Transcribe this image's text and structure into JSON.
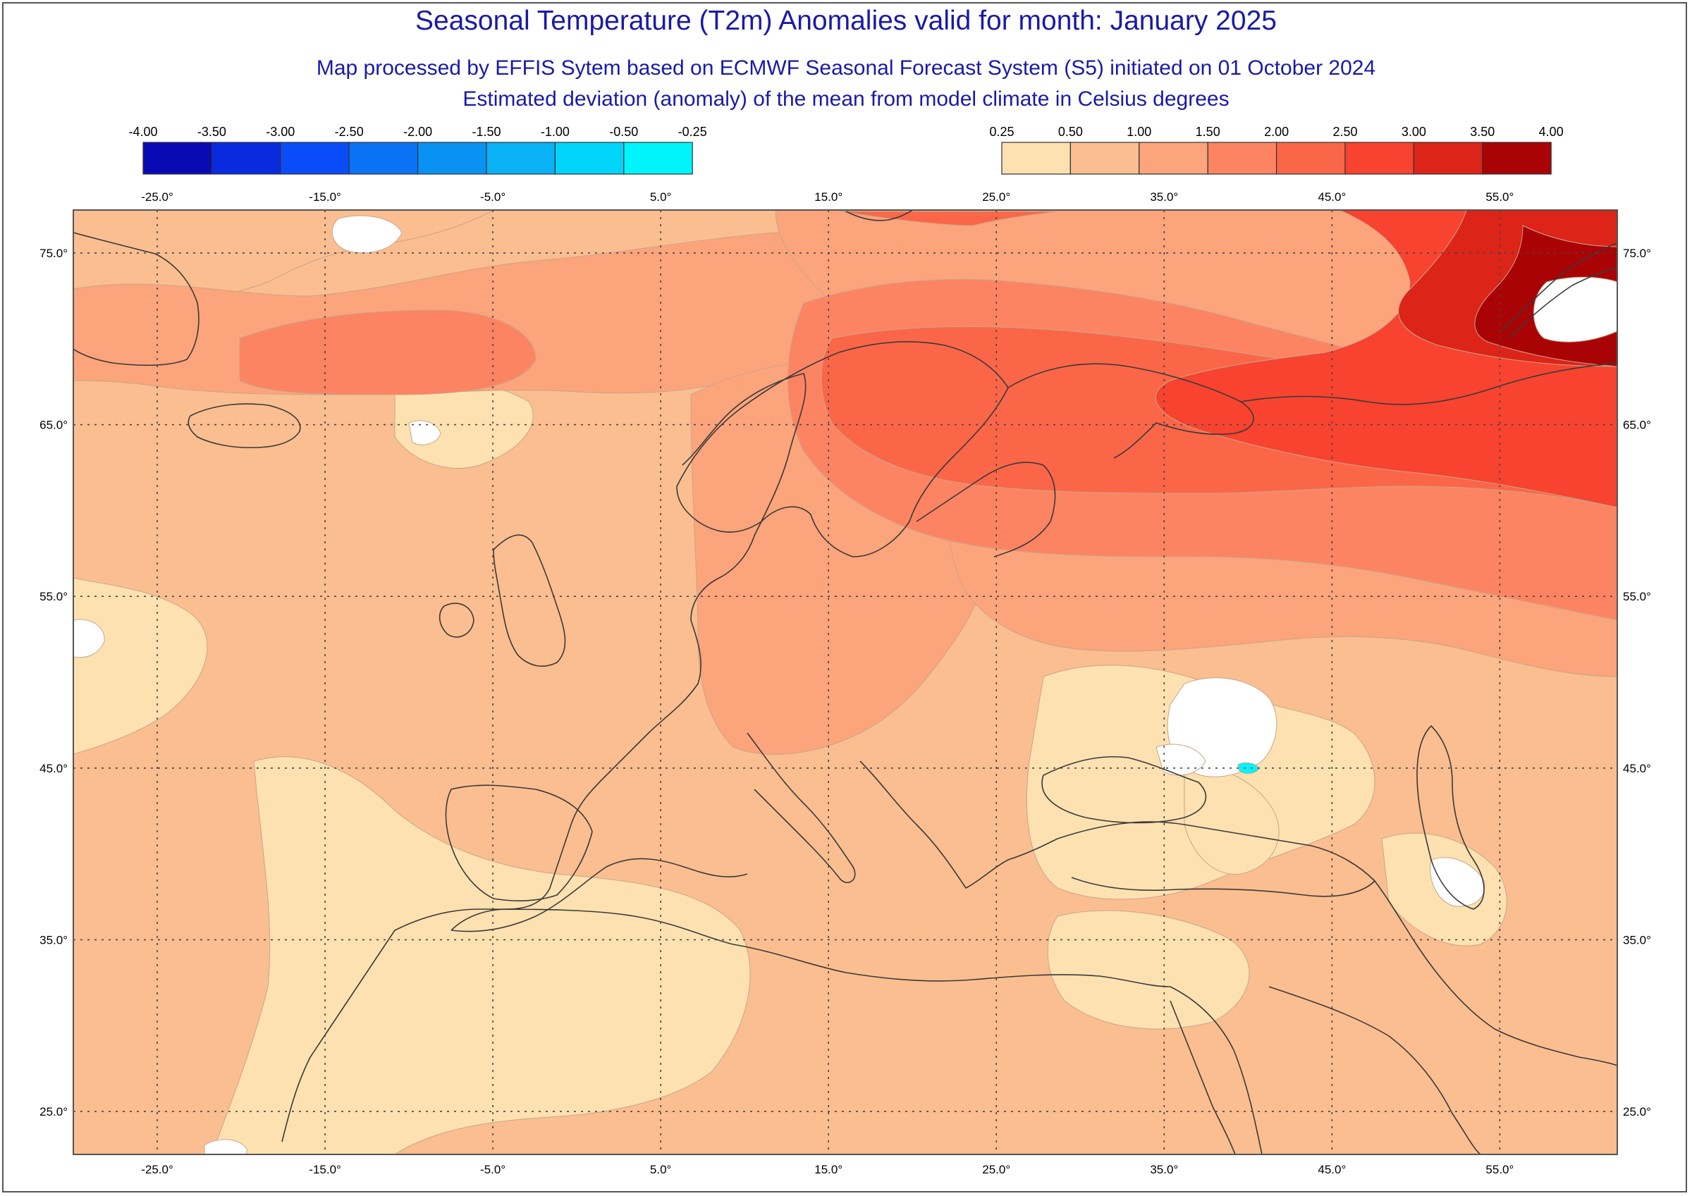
{
  "header": {
    "title": "Seasonal Temperature (T2m) Anomalies valid for month: January 2025",
    "subtitle1": "Map processed by EFFIS Sytem based on ECMWF Seasonal Forecast System (S5) initiated on 01 October 2024",
    "subtitle2": "Estimated deviation (anomaly) of the mean from model climate in Celsius degrees"
  },
  "colorbars": {
    "negative": {
      "labels": [
        "-4.00",
        "-3.50",
        "-3.00",
        "-2.50",
        "-2.00",
        "-1.50",
        "-1.00",
        "-0.50",
        "-0.25"
      ],
      "colors": [
        "#0a0ab4",
        "#0a2ae0",
        "#0a4cf8",
        "#0a72f5",
        "#0a92f2",
        "#08b2f4",
        "#00d4fa",
        "#00f4fa"
      ]
    },
    "positive": {
      "labels": [
        "0.25",
        "0.50",
        "1.00",
        "1.50",
        "2.00",
        "2.50",
        "3.00",
        "3.50",
        "4.00"
      ],
      "colors": [
        "#fde1b0",
        "#fbbe90",
        "#fca47b",
        "#fc8463",
        "#fb6648",
        "#f7432f",
        "#dc2418",
        "#aa0306"
      ]
    }
  },
  "map": {
    "lon_labels": [
      "-25.0°",
      "-15.0°",
      "-5.0°",
      "5.0°",
      "15.0°",
      "25.0°",
      "35.0°",
      "45.0°",
      "55.0°"
    ],
    "lon_values": [
      -25,
      -15,
      -5,
      5,
      15,
      25,
      35,
      45,
      55
    ],
    "lat_labels": [
      "75.0°",
      "65.0°",
      "55.0°",
      "45.0°",
      "35.0°",
      "25.0°"
    ],
    "lat_values": [
      75,
      65,
      55,
      45,
      35,
      25
    ],
    "lon_range": [
      -30,
      62
    ],
    "lat_range": [
      22.5,
      77.5
    ],
    "base_color": "#fbbe90",
    "grid": "dotted"
  }
}
